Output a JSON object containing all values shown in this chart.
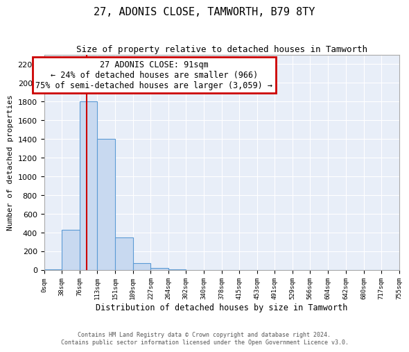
{
  "title": "27, ADONIS CLOSE, TAMWORTH, B79 8TY",
  "subtitle": "Size of property relative to detached houses in Tamworth",
  "xlabel": "Distribution of detached houses by size in Tamworth",
  "ylabel": "Number of detached properties",
  "bin_edges": [
    0,
    38,
    76,
    113,
    151,
    189,
    227,
    264,
    302,
    340,
    378,
    415,
    453,
    491,
    529,
    566,
    604,
    642,
    680,
    717,
    755
  ],
  "bar_heights": [
    10,
    430,
    1800,
    1400,
    350,
    75,
    25,
    5,
    0,
    0,
    0,
    0,
    0,
    0,
    0,
    0,
    0,
    0,
    0,
    0
  ],
  "bar_color": "#c8d9f0",
  "bar_edge_color": "#5b9bd5",
  "property_size": 91,
  "vline_color": "#cc0000",
  "ylim": [
    0,
    2300
  ],
  "yticks": [
    0,
    200,
    400,
    600,
    800,
    1000,
    1200,
    1400,
    1600,
    1800,
    2000,
    2200
  ],
  "annotation_title": "27 ADONIS CLOSE: 91sqm",
  "annotation_line1": "← 24% of detached houses are smaller (966)",
  "annotation_line2": "75% of semi-detached houses are larger (3,059) →",
  "annotation_box_color": "#cc0000",
  "background_color": "#e8eef8",
  "grid_color": "#ffffff",
  "footer_line1": "Contains HM Land Registry data © Crown copyright and database right 2024.",
  "footer_line2": "Contains public sector information licensed under the Open Government Licence v3.0.",
  "title_fontsize": 11,
  "subtitle_fontsize": 9,
  "annotation_fontsize": 8.5,
  "tick_labels": [
    "0sqm",
    "38sqm",
    "76sqm",
    "113sqm",
    "151sqm",
    "189sqm",
    "227sqm",
    "264sqm",
    "302sqm",
    "340sqm",
    "378sqm",
    "415sqm",
    "453sqm",
    "491sqm",
    "529sqm",
    "566sqm",
    "604sqm",
    "642sqm",
    "680sqm",
    "717sqm",
    "755sqm"
  ],
  "footer_fontsize": 6,
  "ylabel_fontsize": 8,
  "xlabel_fontsize": 8.5
}
